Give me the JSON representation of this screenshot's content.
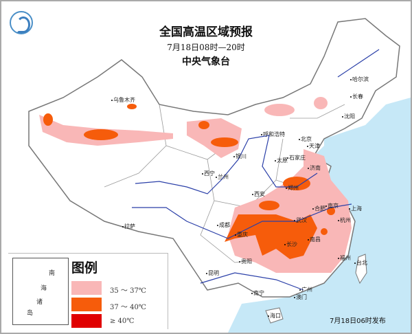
{
  "header": {
    "title": "全国高温区域预报",
    "period": "7月18日08时—20时",
    "issuer": "中央气象台"
  },
  "logo": {
    "icon": "cma-logo-icon"
  },
  "colors": {
    "sea": "#c6e8f7",
    "level1": "#f9b7b7",
    "level2": "#f65c0b",
    "level3": "#e00000",
    "river": "#2a3fa8",
    "border": "#777777"
  },
  "cities": [
    "乌鲁木齐",
    "哈尔滨",
    "长春",
    "沈阳",
    "呼和浩特",
    "北京",
    "天津",
    "石家庄",
    "太原",
    "济南",
    "银川",
    "西宁",
    "兰州",
    "郑州",
    "西安",
    "合肥",
    "南京",
    "上海",
    "武汉",
    "杭州",
    "成都",
    "重庆",
    "长沙",
    "南昌",
    "福州",
    "台北",
    "贵阳",
    "昆明",
    "拉萨",
    "南宁",
    "广州",
    "澳门",
    "海口"
  ],
  "legend": {
    "title": "图例",
    "items": [
      {
        "label": "35 ～ 37℃",
        "color": "#f9b7b7"
      },
      {
        "label": "37 ～ 40℃",
        "color": "#f65c0b"
      },
      {
        "label": "≥ 40℃",
        "color": "#e00000"
      }
    ],
    "inset_labels": [
      "南",
      "海",
      "诸",
      "岛"
    ]
  },
  "footer": {
    "issue_time": "7月18日06时发布"
  }
}
